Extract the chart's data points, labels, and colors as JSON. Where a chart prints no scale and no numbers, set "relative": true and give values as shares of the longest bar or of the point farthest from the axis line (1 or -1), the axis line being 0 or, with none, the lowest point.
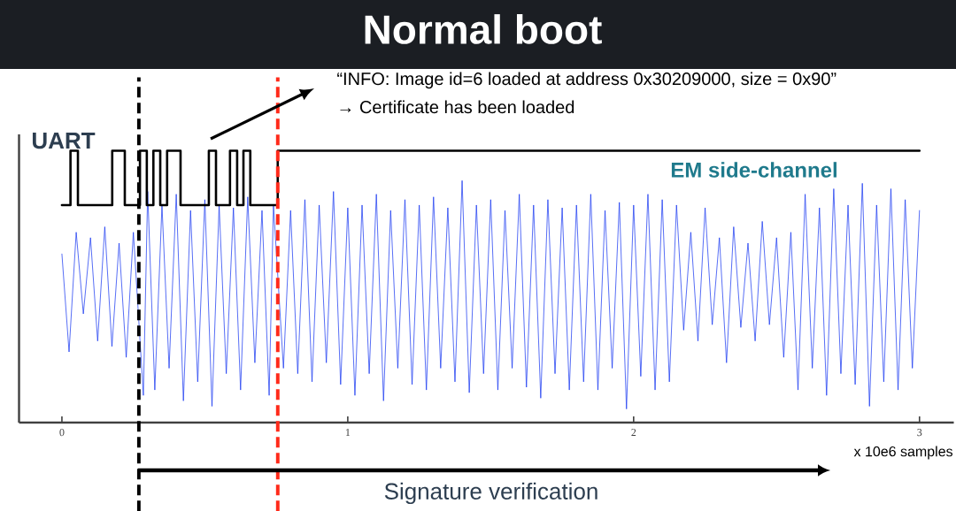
{
  "chart_data": {
    "type": "line",
    "title": "Normal boot",
    "xlabel": "x 10e6 samples",
    "relative": true,
    "xlim": [
      -0.15,
      3.12
    ],
    "xticks": [
      0,
      1,
      2,
      3
    ],
    "series": [
      {
        "name": "UART",
        "type": "step",
        "color": "#000000",
        "x": [
          0,
          0.03,
          0.056,
          0.176,
          0.22,
          0.273,
          0.297,
          0.32,
          0.344,
          0.368,
          0.415,
          0.514,
          0.539,
          0.588,
          0.613,
          0.635,
          0.659,
          0.755,
          3.0
        ],
        "values": [
          0.8,
          1,
          0.8,
          1,
          0.8,
          1,
          0.8,
          1,
          0.8,
          1,
          0.8,
          1,
          0.8,
          1,
          0.8,
          1,
          0.8,
          1,
          1
        ]
      },
      {
        "name": "EM side-channel",
        "color": "#1030f0",
        "x": [
          0,
          0.025,
          0.05,
          0.075,
          0.1,
          0.125,
          0.15,
          0.175,
          0.2,
          0.225,
          0.25,
          0.285,
          0.3,
          0.325,
          0.35,
          0.375,
          0.4,
          0.425,
          0.45,
          0.475,
          0.5,
          0.525,
          0.55,
          0.575,
          0.6,
          0.625,
          0.65,
          0.675,
          0.7,
          0.725,
          0.74,
          0.775,
          0.8,
          0.825,
          0.85,
          0.875,
          0.9,
          0.925,
          0.95,
          0.975,
          1.0,
          1.025,
          1.05,
          1.075,
          1.1,
          1.125,
          1.15,
          1.175,
          1.2,
          1.225,
          1.25,
          1.275,
          1.3,
          1.325,
          1.35,
          1.375,
          1.4,
          1.425,
          1.45,
          1.475,
          1.5,
          1.525,
          1.55,
          1.575,
          1.6,
          1.625,
          1.65,
          1.675,
          1.7,
          1.725,
          1.75,
          1.775,
          1.8,
          1.825,
          1.85,
          1.875,
          1.9,
          1.925,
          1.95,
          1.975,
          2.0,
          2.025,
          2.05,
          2.075,
          2.1,
          2.125,
          2.15,
          2.175,
          2.2,
          2.225,
          2.25,
          2.275,
          2.3,
          2.325,
          2.35,
          2.375,
          2.4,
          2.425,
          2.45,
          2.475,
          2.5,
          2.525,
          2.55,
          2.575,
          2.6,
          2.625,
          2.65,
          2.675,
          2.7,
          2.725,
          2.75,
          2.775,
          2.8,
          2.825,
          2.85,
          2.875,
          2.9,
          2.925,
          2.95,
          2.975,
          3.0
        ],
        "values": [
          0.62,
          0.26,
          0.7,
          0.4,
          0.68,
          0.3,
          0.72,
          0.28,
          0.66,
          0.24,
          0.7,
          0.1,
          0.85,
          0.12,
          0.8,
          0.2,
          0.84,
          0.08,
          0.78,
          0.15,
          0.82,
          0.06,
          0.8,
          0.18,
          0.79,
          0.12,
          0.83,
          0.22,
          0.78,
          0.1,
          0.8,
          0.2,
          0.78,
          0.18,
          0.82,
          0.15,
          0.8,
          0.22,
          0.85,
          0.14,
          0.79,
          0.1,
          0.8,
          0.18,
          0.84,
          0.08,
          0.78,
          0.2,
          0.82,
          0.14,
          0.8,
          0.12,
          0.83,
          0.2,
          0.79,
          0.15,
          0.89,
          0.11,
          0.8,
          0.18,
          0.82,
          0.12,
          0.78,
          0.2,
          0.84,
          0.13,
          0.8,
          0.09,
          0.82,
          0.18,
          0.79,
          0.12,
          0.8,
          0.15,
          0.84,
          0.12,
          0.78,
          0.2,
          0.81,
          0.05,
          0.8,
          0.17,
          0.84,
          0.12,
          0.82,
          0.15,
          0.8,
          0.34,
          0.7,
          0.3,
          0.79,
          0.36,
          0.68,
          0.22,
          0.72,
          0.35,
          0.66,
          0.3,
          0.74,
          0.36,
          0.68,
          0.24,
          0.7,
          0.12,
          0.84,
          0.2,
          0.79,
          0.1,
          0.86,
          0.18,
          0.8,
          0.14,
          0.88,
          0.06,
          0.8,
          0.15,
          0.86,
          0.12,
          0.82,
          0.2,
          0.78
        ]
      }
    ],
    "ref_lines": [
      {
        "axis": "x",
        "value": 0.269,
        "color": "#000000",
        "line_style": "dashed"
      },
      {
        "axis": "x",
        "value": 0.755,
        "color": "#ff2a1a",
        "line_style": "dashed"
      }
    ],
    "annotations": [
      "“INFO:    Image id=6 loaded at address 0x30209000, size = 0x90”",
      "→ Certificate has been loaded",
      "Signature verification"
    ]
  }
}
